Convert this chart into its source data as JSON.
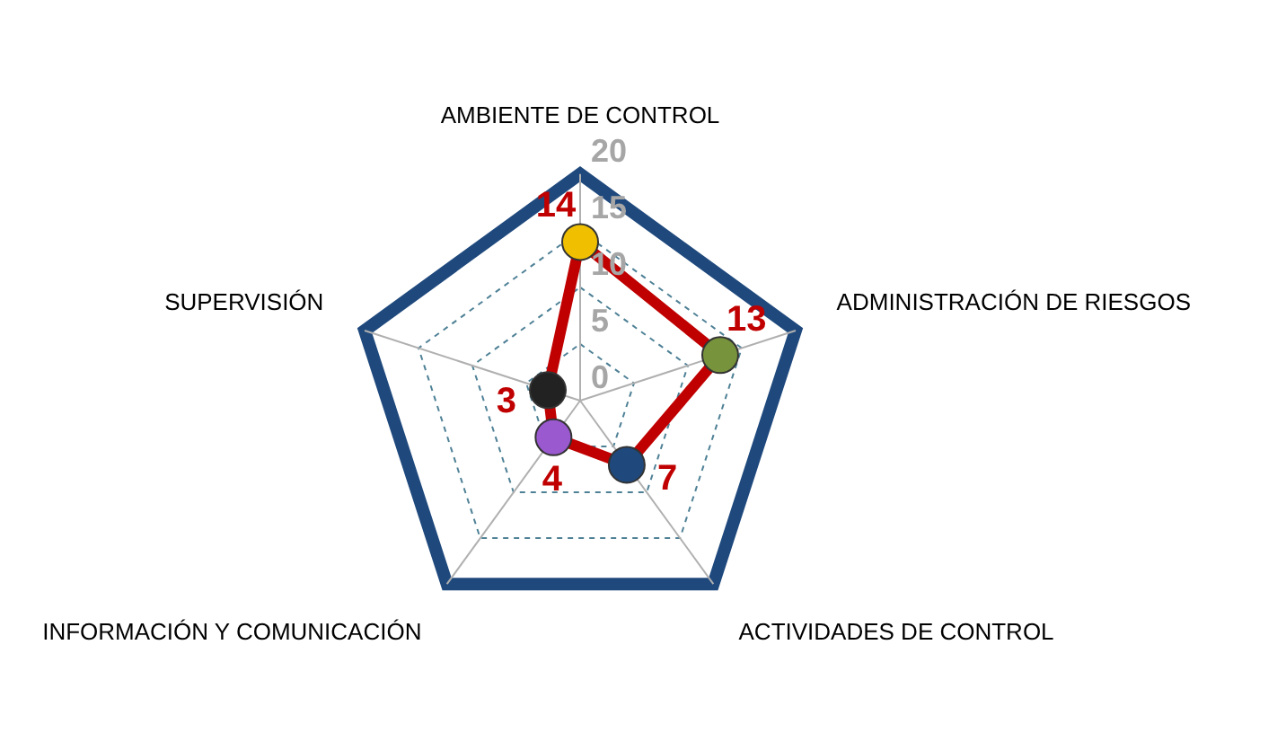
{
  "chart_data": {
    "type": "radar",
    "categories": [
      "AMBIENTE DE CONTROL",
      "ADMINISTRACIÓN DE RIESGOS",
      "ACTIVIDADES DE CONTROL",
      "INFORMACIÓN Y COMUNICACIÓN",
      "SUPERVISIÓN"
    ],
    "series": [
      {
        "color": "#c00000",
        "values": [
          14,
          13,
          7,
          4,
          3
        ],
        "colors": [
          "#f0c000",
          "#77933c",
          "#1f497d",
          "#9b59d0",
          "#222222"
        ],
        "marker": "circle"
      }
    ],
    "ylim": [
      0,
      20
    ],
    "yticks": [
      0,
      5,
      10,
      15,
      20
    ],
    "grid": true,
    "legend": false,
    "data_labels": true
  }
}
